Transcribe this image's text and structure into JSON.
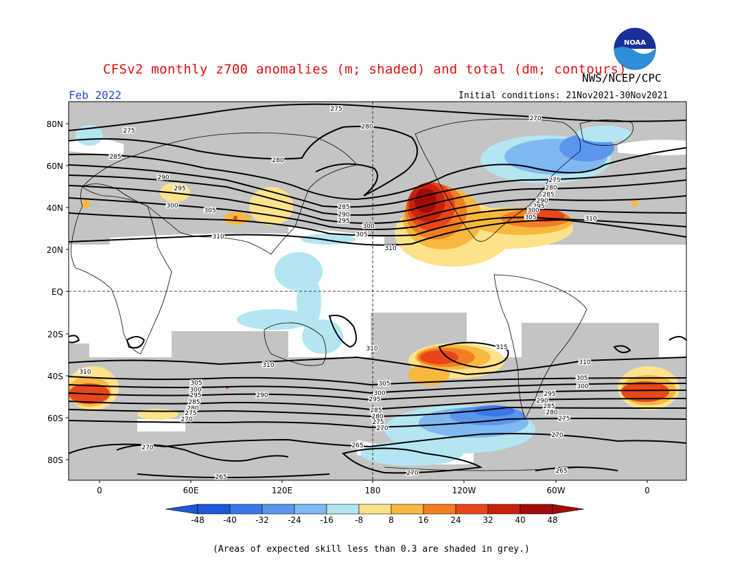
{
  "header": {
    "title": "CFSv2 monthly z700 anomalies (m; shaded) and total (dm; contours)",
    "agency": "NWS/NCEP/CPC",
    "period": "Feb 2022",
    "initial_conditions": "Initial conditions: 21Nov2021-30Nov2021",
    "logo_text": "NOAA"
  },
  "axes": {
    "lat_labels": [
      "80N",
      "60N",
      "40N",
      "20N",
      "EQ",
      "20S",
      "40S",
      "60S",
      "80S"
    ],
    "lon_labels": [
      "0",
      "60E",
      "120E",
      "180",
      "120W",
      "60W",
      "0"
    ]
  },
  "colorbar": {
    "ticks": [
      "-48",
      "-40",
      "-32",
      "-24",
      "-16",
      "-8",
      "8",
      "16",
      "24",
      "32",
      "40",
      "48"
    ],
    "colors": [
      "#1e58d8",
      "#3a78e8",
      "#5a96ee",
      "#80b8f2",
      "#b4e6f2",
      "#ffffff",
      "#fde28a",
      "#f8b840",
      "#f27e22",
      "#e8461a",
      "#c8220c",
      "#a00c08"
    ]
  },
  "footnote": "(Areas of expected skill less than 0.3 are shaded in grey.)",
  "contour_labels": [
    {
      "text": "275"
    },
    {
      "text": "270"
    },
    {
      "text": "280"
    },
    {
      "text": "275"
    },
    {
      "text": "285"
    },
    {
      "text": "280"
    },
    {
      "text": "290"
    },
    {
      "text": "295"
    },
    {
      "text": "300"
    },
    {
      "text": "305"
    },
    {
      "text": "310"
    },
    {
      "text": "285"
    },
    {
      "text": "290"
    },
    {
      "text": "295"
    },
    {
      "text": "300"
    },
    {
      "text": "305"
    },
    {
      "text": "310"
    },
    {
      "text": "275"
    },
    {
      "text": "280"
    },
    {
      "text": "285"
    },
    {
      "text": "290"
    },
    {
      "text": "295"
    },
    {
      "text": "300"
    },
    {
      "text": "305"
    },
    {
      "text": "310"
    },
    {
      "text": "310"
    },
    {
      "text": "310"
    },
    {
      "text": "315"
    },
    {
      "text": "310"
    },
    {
      "text": "310"
    },
    {
      "text": "305"
    },
    {
      "text": "300"
    },
    {
      "text": "295"
    },
    {
      "text": "285"
    },
    {
      "text": "280"
    },
    {
      "text": "275"
    },
    {
      "text": "270"
    },
    {
      "text": "290"
    },
    {
      "text": "305"
    },
    {
      "text": "300"
    },
    {
      "text": "295"
    },
    {
      "text": "285"
    },
    {
      "text": "280"
    },
    {
      "text": "275"
    },
    {
      "text": "270"
    },
    {
      "text": "305"
    },
    {
      "text": "300"
    },
    {
      "text": "295"
    },
    {
      "text": "290"
    },
    {
      "text": "285"
    },
    {
      "text": "280"
    },
    {
      "text": "275"
    },
    {
      "text": "270"
    },
    {
      "text": "270"
    },
    {
      "text": "265"
    },
    {
      "text": "265"
    },
    {
      "text": "270"
    },
    {
      "text": "265"
    }
  ]
}
